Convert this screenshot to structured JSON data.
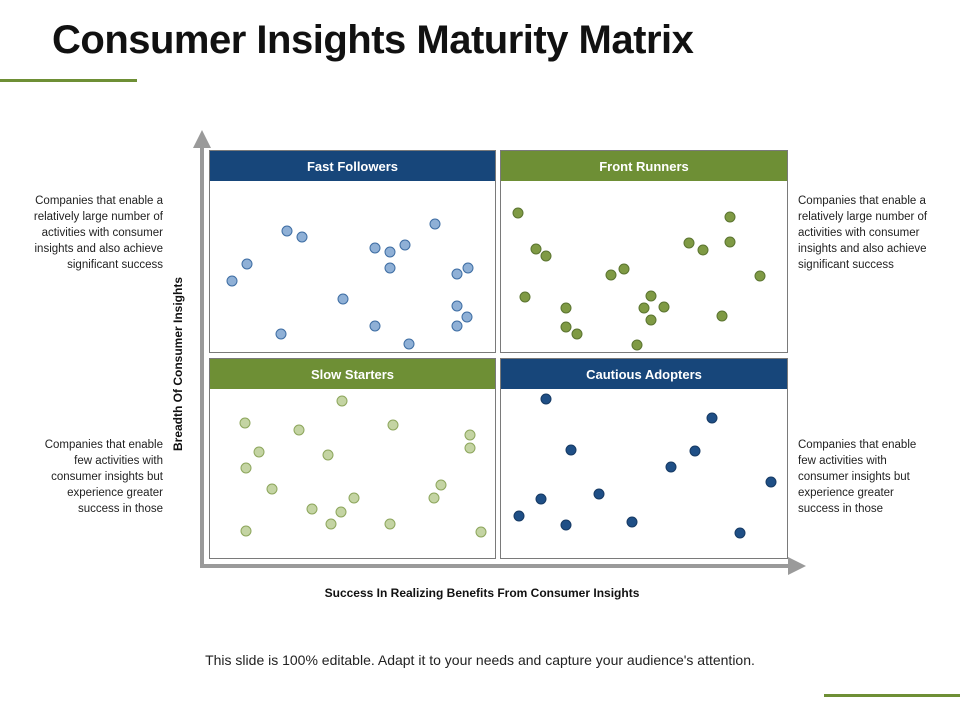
{
  "title": "Consumer Insights Maturity Matrix",
  "axis": {
    "y_label": "Breadth Of Consumer Insights",
    "x_label": "Success In Realizing Benefits From Consumer Insights"
  },
  "quadrants": {
    "fast_followers": {
      "label": "Fast Followers",
      "header_color": "#17467a",
      "dot_fill": "#8fb0d6",
      "dot_stroke": "#3e6da3"
    },
    "front_runners": {
      "label": "Front Runners",
      "header_color": "#6e8f35",
      "dot_fill": "#7f9a44",
      "dot_stroke": "#5b7430"
    },
    "slow_starters": {
      "label": "Slow Starters",
      "header_color": "#6e8f35",
      "dot_fill": "#c4d4a3",
      "dot_stroke": "#8da65c"
    },
    "cautious_adopters": {
      "label": "Cautious Adopters",
      "header_color": "#17467a",
      "dot_fill": "#1f4f86",
      "dot_stroke": "#163a64"
    }
  },
  "descriptions": {
    "top_left": "Companies that enable a relatively large number of activities with consumer insights and also achieve significant success",
    "top_right": "Companies that enable a relatively large number of activities with consumer insights and also achieve significant success",
    "bottom_left": "Companies that enable few activities with consumer insights but experience greater success in those",
    "bottom_right": "Companies that enable few activities with consumer insights but experience greater success in those"
  },
  "footer": "This slide is 100% editable. Adapt it to your needs and capture your audience's attention.",
  "colors": {
    "accent": "#6e8f35",
    "axis": "#9a9a9a"
  }
}
